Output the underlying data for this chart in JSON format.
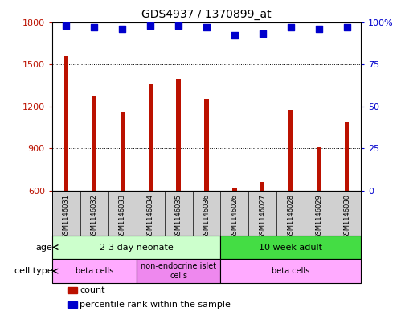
{
  "title": "GDS4937 / 1370899_at",
  "samples": [
    "GSM1146031",
    "GSM1146032",
    "GSM1146033",
    "GSM1146034",
    "GSM1146035",
    "GSM1146036",
    "GSM1146026",
    "GSM1146027",
    "GSM1146028",
    "GSM1146029",
    "GSM1146030"
  ],
  "counts": [
    1560,
    1270,
    1160,
    1360,
    1400,
    1255,
    620,
    660,
    1175,
    910,
    1090
  ],
  "percentile_ranks": [
    98,
    97,
    96,
    98,
    98,
    97,
    92,
    93,
    97,
    96,
    97
  ],
  "ylim_left": [
    600,
    1800
  ],
  "ylim_right": [
    0,
    100
  ],
  "yticks_left": [
    600,
    900,
    1200,
    1500,
    1800
  ],
  "yticks_right": [
    0,
    25,
    50,
    75,
    100
  ],
  "bar_color": "#bb1100",
  "dot_color": "#0000cc",
  "bar_width": 0.15,
  "dot_size": 28,
  "age_groups": [
    {
      "label": "2-3 day neonate",
      "start": 0,
      "end": 6,
      "color": "#ccffcc"
    },
    {
      "label": "10 week adult",
      "start": 6,
      "end": 11,
      "color": "#44dd44"
    }
  ],
  "cell_type_groups": [
    {
      "label": "beta cells",
      "start": 0,
      "end": 3,
      "color": "#ffaaff"
    },
    {
      "label": "non-endocrine islet\ncells",
      "start": 3,
      "end": 6,
      "color": "#ee88ee"
    },
    {
      "label": "beta cells",
      "start": 6,
      "end": 11,
      "color": "#ffaaff"
    }
  ],
  "age_label": "age",
  "cell_type_label": "cell type",
  "tick_label_bg": "#d0d0d0",
  "legend_items": [
    {
      "label": "count",
      "color": "#bb1100"
    },
    {
      "label": "percentile rank within the sample",
      "color": "#0000cc"
    }
  ]
}
